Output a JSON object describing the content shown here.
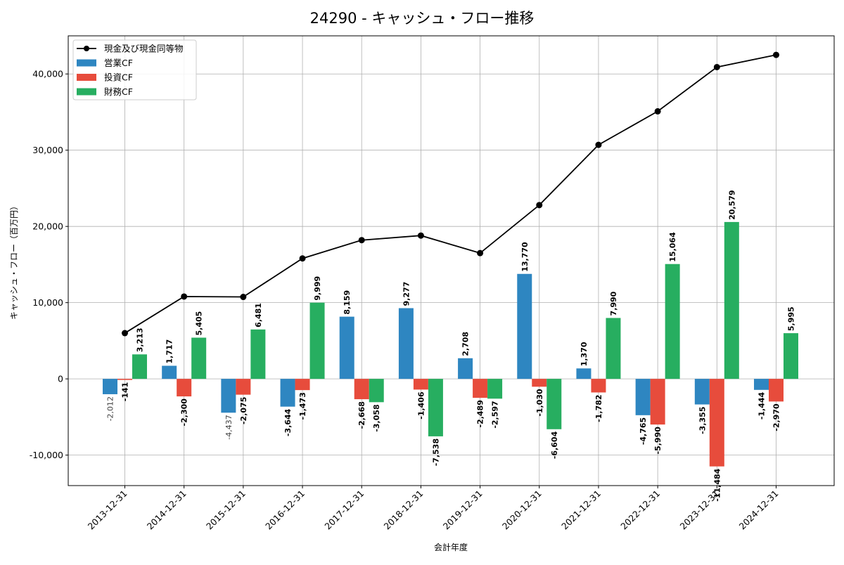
{
  "chart_data": {
    "type": "bar",
    "title": "24290 - キャッシュ・フロー推移",
    "xlabel": "会計年度",
    "ylabel": "キャッシュ・フロー（百万円）",
    "ylim": [
      -14000,
      45000
    ],
    "yticks": [
      -10000,
      0,
      10000,
      20000,
      30000,
      40000
    ],
    "ytick_labels": [
      "-10,000",
      "0",
      "10,000",
      "20,000",
      "30,000",
      "40,000"
    ],
    "grid": true,
    "legend_position": "top-left",
    "categories": [
      "2013-12-31",
      "2014-12-31",
      "2015-12-31",
      "2016-12-31",
      "2017-12-31",
      "2018-12-31",
      "2019-12-31",
      "2020-12-31",
      "2021-12-31",
      "2022-12-31",
      "2023-12-31",
      "2024-12-31"
    ],
    "series": [
      {
        "name": "営業CF",
        "type": "bar",
        "color": "#2e86c1",
        "values": [
          -2012,
          1717,
          -4437,
          -3644,
          8159,
          9277,
          2708,
          13770,
          1370,
          -4765,
          -3355,
          -1444
        ],
        "labels": [
          "-2,012",
          "1,717",
          "-4,437",
          "-3,644",
          "8,159",
          "9,277",
          "2,708",
          "13,770",
          "1,370",
          "-4,765",
          "-3,355",
          "-1,444"
        ]
      },
      {
        "name": "投資CF",
        "type": "bar",
        "color": "#e74c3c",
        "values": [
          -141,
          -2300,
          -2075,
          -1473,
          -2668,
          -1406,
          -2489,
          -1030,
          -1782,
          -5990,
          -11484,
          -2970
        ],
        "labels": [
          "-141",
          "-2,300",
          "-2,075",
          "-1,473",
          "-2,668",
          "-1,406",
          "-2,489",
          "-1,030",
          "-1,782",
          "-5,990",
          "-11,484",
          "-2,970"
        ]
      },
      {
        "name": "財務CF",
        "type": "bar",
        "color": "#27ae60",
        "values": [
          3213,
          5405,
          6481,
          9999,
          -3058,
          -7538,
          -2597,
          -6604,
          7990,
          15064,
          20579,
          5995
        ],
        "labels": [
          "3,213",
          "5,405",
          "6,481",
          "9,999",
          "-3,058",
          "-7,538",
          "-2,597",
          "-6,604",
          "7,990",
          "15,064",
          "20,579",
          "5,995"
        ]
      },
      {
        "name": "現金及び現金同等物",
        "type": "line",
        "color": "#000000",
        "values": [
          6000,
          10800,
          10750,
          15800,
          18200,
          18800,
          16500,
          22800,
          30700,
          35100,
          40900,
          42500
        ]
      }
    ]
  }
}
